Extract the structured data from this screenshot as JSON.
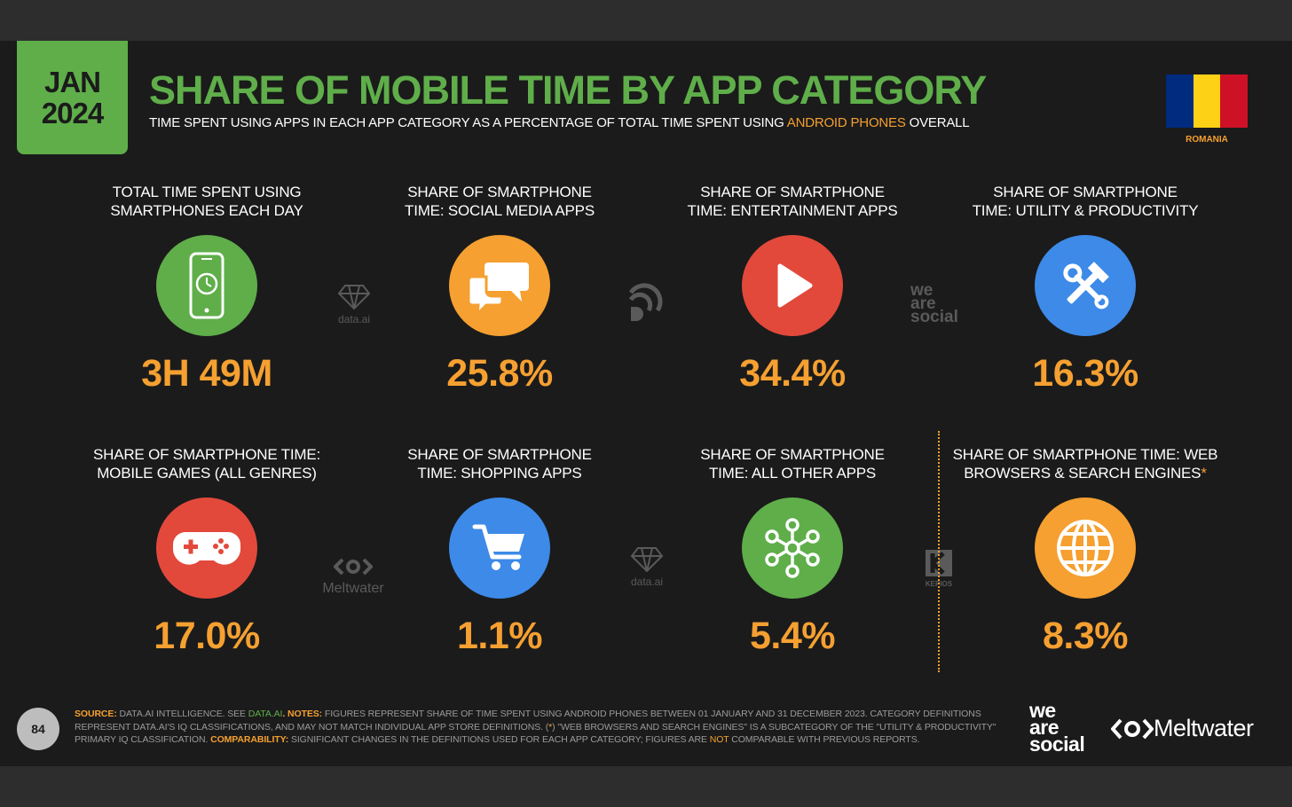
{
  "header": {
    "month": "JAN",
    "year": "2024",
    "title": "SHARE OF MOBILE TIME BY APP CATEGORY",
    "subtitle_pre": "TIME SPENT USING APPS IN EACH APP CATEGORY AS A PERCENTAGE OF TOTAL TIME SPENT USING ",
    "subtitle_highlight": "ANDROID PHONES",
    "subtitle_post": " OVERALL",
    "country": "ROMANIA",
    "flag_colors": [
      "#002b7f",
      "#fcd116",
      "#ce1126"
    ]
  },
  "colors": {
    "accent_green": "#5fae4a",
    "accent_orange": "#f5a031",
    "red": "#e2493b",
    "blue": "#3d8ae8"
  },
  "stats": [
    {
      "label_1": "TOTAL TIME SPENT USING",
      "label_2": "SMARTPHONES EACH DAY",
      "value": "3H 49M",
      "icon": "smartphone-clock-icon",
      "color": "#5fae4a"
    },
    {
      "label_1": "SHARE OF SMARTPHONE",
      "label_2": "TIME: SOCIAL MEDIA APPS",
      "value": "25.8%",
      "icon": "speech-bubbles-icon",
      "color": "#f5a031"
    },
    {
      "label_1": "SHARE OF SMARTPHONE",
      "label_2": "TIME: ENTERTAINMENT APPS",
      "value": "34.4%",
      "icon": "play-icon",
      "color": "#e2493b"
    },
    {
      "label_1": "SHARE OF SMARTPHONE",
      "label_2": "TIME: UTILITY & PRODUCTIVITY",
      "value": "16.3%",
      "icon": "tools-icon",
      "color": "#3d8ae8"
    },
    {
      "label_1": "SHARE OF SMARTPHONE TIME:",
      "label_2": "MOBILE GAMES (ALL GENRES)",
      "value": "17.0%",
      "icon": "gamepad-icon",
      "color": "#e2493b"
    },
    {
      "label_1": "SHARE OF SMARTPHONE",
      "label_2": "TIME: SHOPPING APPS",
      "value": "1.1%",
      "icon": "shopping-cart-icon",
      "color": "#3d8ae8"
    },
    {
      "label_1": "SHARE OF SMARTPHONE",
      "label_2": "TIME: ALL OTHER APPS",
      "value": "5.4%",
      "icon": "app-network-icon",
      "color": "#5fae4a"
    },
    {
      "label_1": "SHARE OF SMARTPHONE TIME: WEB",
      "label_2": "BROWSERS & SEARCH ENGINES",
      "star": "*",
      "value": "8.3%",
      "icon": "globe-icon",
      "color": "#f5a031"
    }
  ],
  "watermarks": {
    "dataai": "data.ai",
    "was_1": "we",
    "was_2": "are",
    "was_3": "social",
    "meltwater": "Meltwater",
    "kepios": "KEPIOS"
  },
  "footer": {
    "page_number": "84",
    "source_label": "SOURCE:",
    "source_text": " DATA.AI INTELLIGENCE. SEE ",
    "source_link": "DATA.AI",
    "notes_label": ". NOTES:",
    "notes_text": " FIGURES REPRESENT SHARE OF TIME SPENT USING ANDROID PHONES BETWEEN 01 JANUARY AND 31 DECEMBER 2023. CATEGORY DEFINITIONS REPRESENT DATA.AI'S IQ CLASSIFICATIONS, AND MAY NOT MATCH INDIVIDUAL APP STORE DEFINITIONS. (",
    "notes_star": "*",
    "notes_text_2": ") \"WEB BROWSERS AND SEARCH ENGINES\" IS A SUBCATEGORY OF THE \"UTILITY & PRODUCTIVITY\" PRIMARY IQ CLASSIFICATION. ",
    "comp_label": "COMPARABILITY:",
    "comp_text": " SIGNIFICANT CHANGES IN THE DEFINITIONS USED FOR EACH APP CATEGORY; FIGURES ARE ",
    "comp_not": "NOT",
    "comp_text_2": " COMPARABLE WITH PREVIOUS REPORTS.",
    "logo_was_1": "we",
    "logo_was_2": "are",
    "logo_was_3": "social",
    "logo_meltwater": "Meltwater"
  }
}
